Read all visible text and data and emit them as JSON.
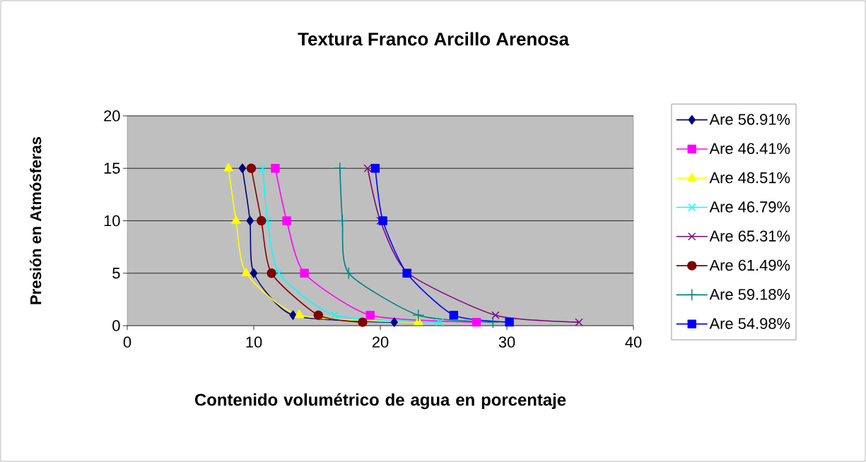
{
  "chart_data": {
    "type": "line",
    "title": "Textura  Franco Arcillo Arenosa",
    "xlabel": "Contenido volumétrico de agua en porcentaje",
    "ylabel": "Presión en Atmósferas",
    "xlim": [
      0,
      40
    ],
    "xticks": [
      0,
      10,
      20,
      30,
      40
    ],
    "ylim": [
      0,
      20
    ],
    "yticks": [
      0,
      5,
      10,
      15,
      20
    ],
    "grid": "y",
    "legend": "right",
    "series": [
      {
        "name": "Are 56.91%",
        "color": "#000080",
        "marker": "diamond",
        "x": [
          21.1,
          13.1,
          10.0,
          9.7,
          9.1
        ],
        "values": [
          0.33,
          1,
          5,
          10,
          15
        ]
      },
      {
        "name": "Are 46.41%",
        "color": "#ff00ff",
        "marker": "square",
        "x": [
          27.6,
          19.2,
          14.0,
          12.6,
          11.7
        ],
        "values": [
          0.33,
          1,
          5,
          10,
          15
        ]
      },
      {
        "name": "Are 48.51%",
        "color": "#ffff00",
        "marker": "triangle",
        "x": [
          23.0,
          13.6,
          9.4,
          8.6,
          8.0
        ],
        "values": [
          0.33,
          1,
          5,
          10,
          15
        ]
      },
      {
        "name": "Are 46.79%",
        "color": "#00ffff",
        "marker": "cross",
        "x": [
          24.7,
          16.4,
          12.0,
          11.1,
          10.7
        ],
        "values": [
          0.33,
          1,
          5,
          10,
          15
        ]
      },
      {
        "name": "Are 65.31%",
        "color": "#800080",
        "marker": "cross",
        "x": [
          35.7,
          29.1,
          22.2,
          20.0,
          19.0
        ],
        "values": [
          0.33,
          1,
          5,
          10,
          15
        ]
      },
      {
        "name": "Are 61.49%",
        "color": "#800000",
        "marker": "circle",
        "x": [
          18.6,
          15.1,
          11.4,
          10.6,
          9.8
        ],
        "values": [
          0.33,
          1,
          5,
          10,
          15
        ]
      },
      {
        "name": "Are 59.18%",
        "color": "#008080",
        "marker": "plus",
        "x": [
          28.9,
          23.0,
          17.5,
          17.0,
          16.8
        ],
        "values": [
          0.33,
          1,
          5,
          10,
          15
        ]
      },
      {
        "name": "Are 54.98%",
        "color": "#0000ff",
        "marker": "square",
        "x": [
          30.2,
          25.8,
          22.1,
          20.2,
          19.6
        ],
        "values": [
          0.33,
          1,
          5,
          10,
          15
        ]
      }
    ]
  }
}
